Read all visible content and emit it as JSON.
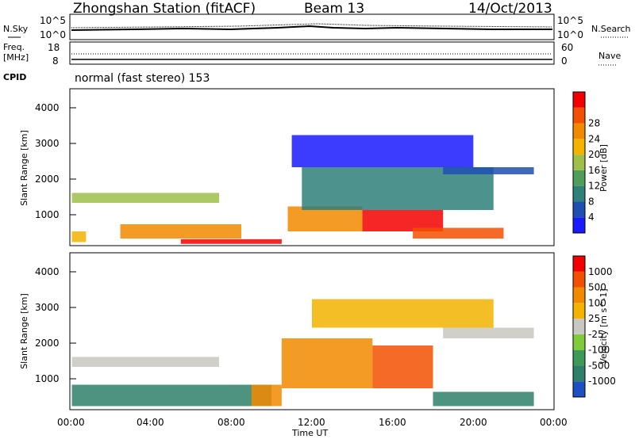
{
  "header": {
    "station": "Zhongshan Station (fitACF)",
    "beam": "Beam 13",
    "date": "14/Oct/2013"
  },
  "status_panels": {
    "nsky_label": "N.Sky",
    "nsearch_label": "N.Search",
    "nsky_ticks": [
      "10^5",
      "10^0"
    ],
    "nsearch_ticks": [
      "10^5",
      "10^0"
    ],
    "freq_label_line1": "Freq.",
    "freq_label_line2": "[MHz]",
    "freq_ticks": [
      "18",
      "8"
    ],
    "nave_label": "Nave",
    "nave_ticks": [
      "60",
      "0"
    ],
    "cpid_label": "CPID",
    "cpid_text": "normal (fast stereo) 153"
  },
  "chart_data": [
    {
      "type": "heatmap",
      "title": "",
      "xlabel": "Time UT",
      "ylabel": "Slant Range [km]",
      "x_tick_labels": [
        "00:00",
        "04:00",
        "08:00",
        "12:00",
        "16:00",
        "20:00",
        "00:00"
      ],
      "y_tick_labels": [
        "1000",
        "2000",
        "3000",
        "4000"
      ],
      "xlim_hours": [
        0,
        24
      ],
      "ylim_km": [
        200,
        4600
      ],
      "colorbar": {
        "label": "Power [dB]",
        "ticks": [
          "4",
          "8",
          "12",
          "16",
          "20",
          "24",
          "28"
        ],
        "colors": [
          "#1a1aff",
          "#1f4fb0",
          "#2f7f7a",
          "#4f9d5a",
          "#9ec04a",
          "#f2b400",
          "#f28a00",
          "#f25000",
          "#f20000"
        ]
      },
      "regions": [
        {
          "t0": 0.1,
          "t1": 7.4,
          "r0": 1400,
          "r1": 1680,
          "level": 4
        },
        {
          "t0": 0.1,
          "t1": 0.8,
          "r0": 300,
          "r1": 600,
          "level": 5
        },
        {
          "t0": 2.5,
          "t1": 8.5,
          "r0": 400,
          "r1": 800,
          "level": 6
        },
        {
          "t0": 5.5,
          "t1": 10.5,
          "r0": 250,
          "r1": 380,
          "level": 8
        },
        {
          "t0": 10.8,
          "t1": 14.5,
          "r0": 600,
          "r1": 1300,
          "level": 6
        },
        {
          "t0": 14.5,
          "t1": 18.5,
          "r0": 600,
          "r1": 1200,
          "level": 8
        },
        {
          "t0": 17.0,
          "t1": 21.5,
          "r0": 400,
          "r1": 700,
          "level": 7
        },
        {
          "t0": 11.5,
          "t1": 21.0,
          "r0": 1200,
          "r1": 2400,
          "level": 2
        },
        {
          "t0": 18.5,
          "t1": 23.0,
          "r0": 2200,
          "r1": 2400,
          "level": 1
        },
        {
          "t0": 11.0,
          "t1": 20.0,
          "r0": 2400,
          "r1": 3300,
          "level": 0
        }
      ]
    },
    {
      "type": "heatmap",
      "title": "",
      "xlabel": "Time UT",
      "ylabel": "Slant Range [km]",
      "x_tick_labels": [
        "00:00",
        "04:00",
        "08:00",
        "12:00",
        "16:00",
        "20:00",
        "00:00"
      ],
      "y_tick_labels": [
        "1000",
        "2000",
        "3000",
        "4000"
      ],
      "xlim_hours": [
        0,
        24
      ],
      "ylim_km": [
        200,
        4600
      ],
      "colorbar": {
        "label": "Velocity [m s^-1]",
        "ticks": [
          "1000",
          "500",
          "100",
          "25",
          "-25",
          "-100",
          "-500",
          "-1000"
        ],
        "colors": [
          "#1f4fc0",
          "#2f7f6a",
          "#3f9a5a",
          "#7fcc3a",
          "#c8c8c0",
          "#f2b400",
          "#f28a00",
          "#f25000",
          "#f20000"
        ]
      },
      "regions": [
        {
          "t0": 0.1,
          "t1": 7.4,
          "r0": 1400,
          "r1": 1680,
          "level": 4
        },
        {
          "t0": 0.1,
          "t1": 10.0,
          "r0": 300,
          "r1": 900,
          "level": 1
        },
        {
          "t0": 9.0,
          "t1": 10.5,
          "r0": 300,
          "r1": 900,
          "level": 6
        },
        {
          "t0": 10.5,
          "t1": 15.0,
          "r0": 800,
          "r1": 2200,
          "level": 6
        },
        {
          "t0": 15.0,
          "t1": 18.0,
          "r0": 800,
          "r1": 2000,
          "level": 7
        },
        {
          "t0": 18.0,
          "t1": 23.0,
          "r0": 300,
          "r1": 700,
          "level": 1
        },
        {
          "t0": 18.5,
          "t1": 23.0,
          "r0": 2200,
          "r1": 2500,
          "level": 4
        },
        {
          "t0": 12.0,
          "t1": 21.0,
          "r0": 2500,
          "r1": 3300,
          "level": 5
        }
      ]
    }
  ]
}
